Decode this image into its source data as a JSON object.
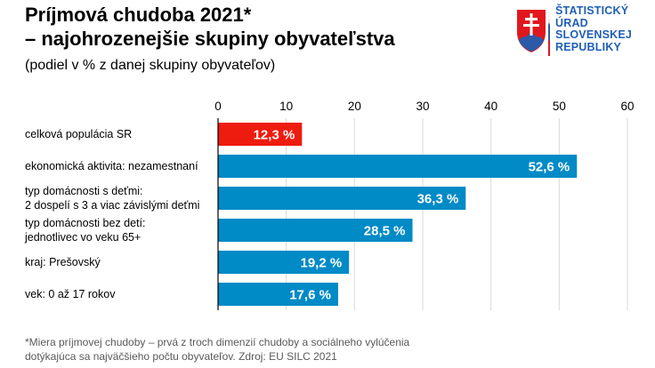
{
  "title_line1": "Príjmová chudoba 2021*",
  "title_line2": "– najohrozenejšie skupiny obyvateľstva",
  "subtitle": "(podiel v % z danej skupiny obyvateľov)",
  "logo": {
    "icon": "slovak-coat-of-arms-icon",
    "lines": [
      "ŠTATISTICKÝ",
      "ÚRAD",
      "SLOVENSKEJ",
      "REPUBLIKY"
    ],
    "text_color": "#1f5fb4"
  },
  "footnote_line1": "*Miera príjmovej chudoby – prvá z troch dimenzií chudoby a sociálneho vylúčenia",
  "footnote_line2": "dotýkajúca sa najväčšieho počtu obyvateľov. Zdroj: EU SILC 2021",
  "chart_data": {
    "type": "bar",
    "orientation": "horizontal",
    "title": "Príjmová chudoba 2021* – najohrozenejšie skupiny obyvateľstva",
    "subtitle": "(podiel v % z danej skupiny obyvateľov)",
    "xlabel": "",
    "ylabel": "",
    "xlim": [
      0,
      60
    ],
    "xticks": [
      0,
      10,
      20,
      30,
      40,
      50,
      60
    ],
    "xtick_labels": [
      "0",
      "10",
      "20",
      "30",
      "40",
      "50",
      "60"
    ],
    "grid": true,
    "axis_position": "top",
    "categories": [
      [
        "celková populácia SR"
      ],
      [
        "ekonomická aktivita: nezamestnaní"
      ],
      [
        "typ domácnosti s deťmi:",
        "2 dospelí s 3 a viac závislými deťmi"
      ],
      [
        "typ domácnosti bez detí:",
        "jednotlivec vo veku 65+"
      ],
      [
        "kraj: Prešovský"
      ],
      [
        "vek: 0 až 17 rokov"
      ]
    ],
    "values": [
      12.3,
      52.6,
      36.3,
      28.5,
      19.2,
      17.6
    ],
    "data_labels": [
      "12,3 %",
      "52,6 %",
      "36,3 %",
      "28,5 %",
      "19,2 %",
      "17,6 %"
    ],
    "colors": [
      "#ee1c0f",
      "#008ac6",
      "#008ac6",
      "#008ac6",
      "#008ac6",
      "#008ac6"
    ],
    "gridline_color": "#d9d9d9",
    "axis_color": "#000000"
  }
}
